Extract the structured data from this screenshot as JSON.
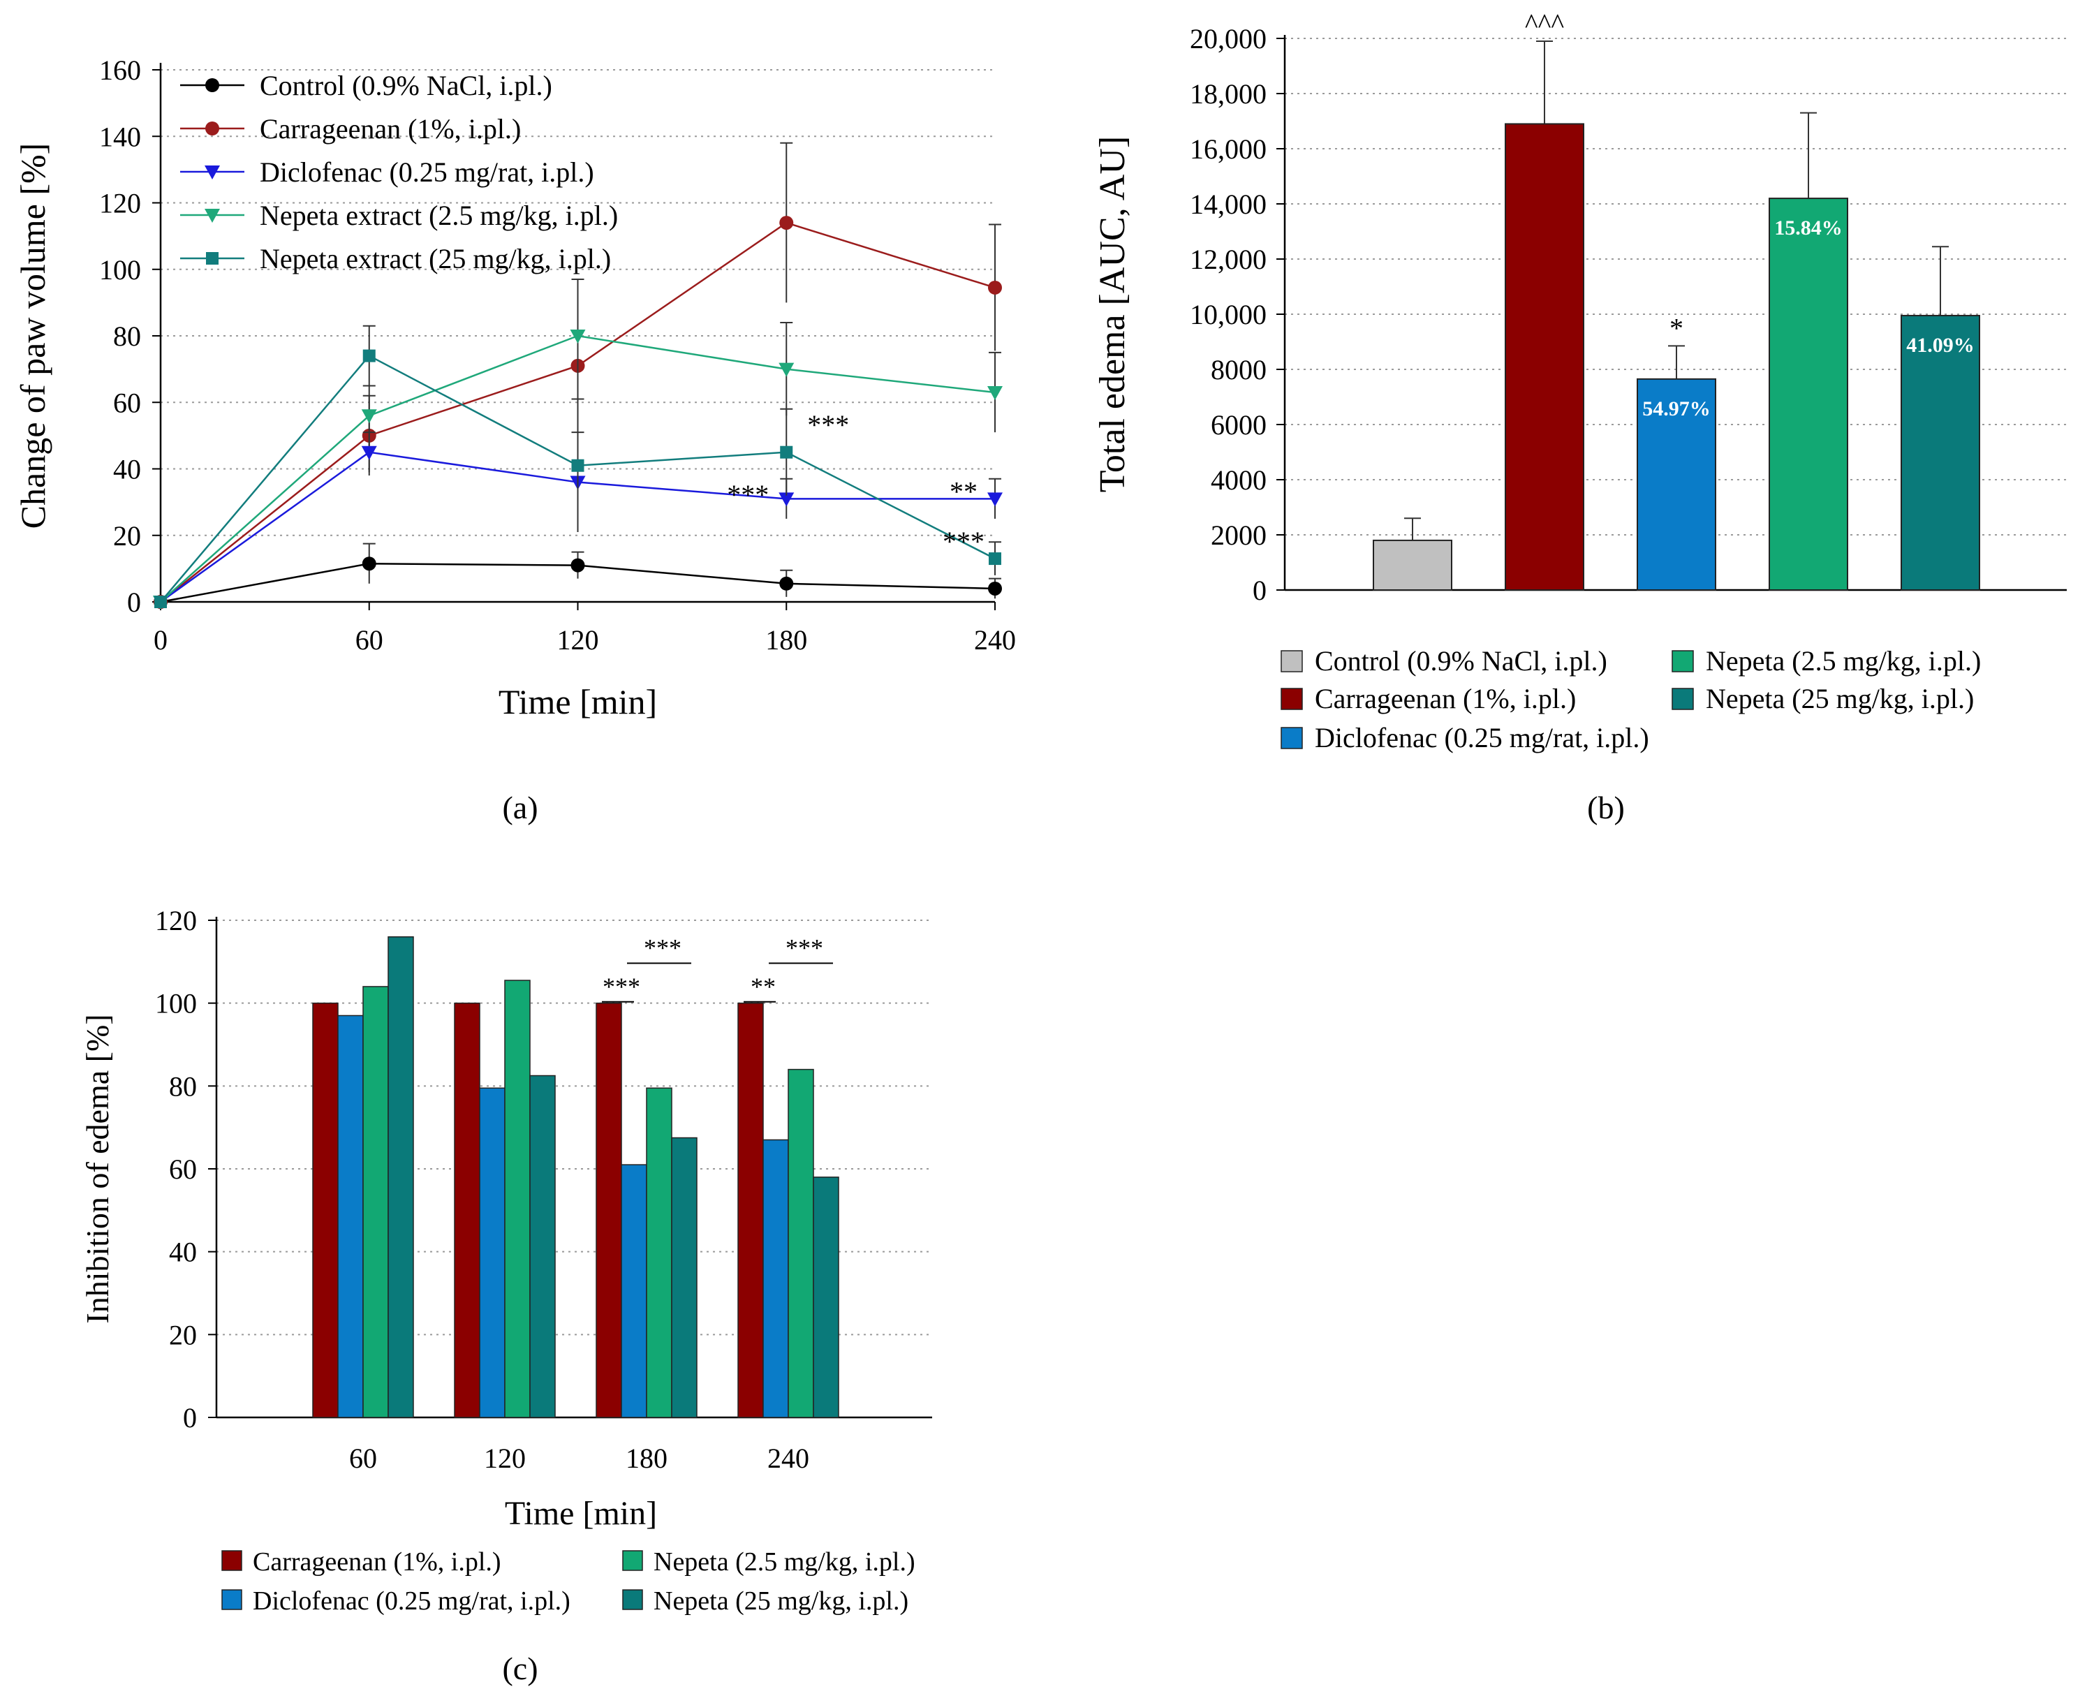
{
  "panel_labels": [
    "(a)",
    "(b)",
    "(c)"
  ],
  "chart_data": [
    {
      "id": "a",
      "type": "line",
      "xlabel": "Time [min]",
      "ylabel": "Change of paw volume [%]",
      "x": [
        0,
        60,
        120,
        180,
        240
      ],
      "xticks": [
        "0",
        "60",
        "120",
        "180",
        "240"
      ],
      "yticks": [
        "0",
        "20",
        "40",
        "60",
        "80",
        "100",
        "120",
        "140",
        "160"
      ],
      "ylim": [
        0,
        160
      ],
      "grid": "horizontal dotted",
      "legend_position": "top-left",
      "series": [
        {
          "name": "Control (0.9% NaCl, i.pl.)",
          "color": "#000000",
          "marker": "circle",
          "values": [
            0,
            11.5,
            11,
            5.5,
            4
          ],
          "errors": [
            0,
            6,
            4,
            4,
            3
          ]
        },
        {
          "name": "Carrageenan (1%, i.pl.)",
          "color": "#9b1c1c",
          "marker": "circle",
          "values": [
            0,
            50,
            71,
            114,
            94.5
          ],
          "errors": [
            0,
            12,
            26,
            24,
            19
          ]
        },
        {
          "name": "Diclofenac (0.25 mg/rat, i.pl.)",
          "color": "#1a1adc",
          "marker": "triangle-down",
          "values": [
            0,
            45,
            36,
            31,
            31
          ],
          "errors": [
            0,
            6,
            15,
            6,
            6
          ]
        },
        {
          "name": "Nepeta extract (2.5 mg/kg, i.pl.)",
          "color": "#1fa87a",
          "marker": "triangle-down",
          "values": [
            0,
            56,
            80,
            70,
            63
          ],
          "errors": [
            0,
            9,
            17,
            14,
            12
          ]
        },
        {
          "name": "Nepeta extract (25 mg/kg, i.pl.)",
          "color": "#127d7d",
          "marker": "square",
          "values": [
            0,
            74,
            41,
            45,
            13
          ],
          "errors": [
            0,
            9,
            20,
            13,
            5
          ]
        }
      ],
      "annotations": [
        {
          "text": "***",
          "x": 180,
          "y": 55
        },
        {
          "text": "***",
          "x": 180,
          "y": 34
        },
        {
          "text": "**",
          "x": 240,
          "y": 35
        },
        {
          "text": "***",
          "x": 240,
          "y": 20
        }
      ]
    },
    {
      "id": "b",
      "type": "bar",
      "ylabel": "Total edema [AUC, AU]",
      "categories": [
        "Control (0.9% NaCl, i.pl.)",
        "Carrageenan (1%, i.pl.)",
        "Diclofenac (0.25 mg/rat, i.pl.)",
        "Nepeta (2.5 mg/kg, i.pl.)",
        "Nepeta (25 mg/kg, i.pl.)"
      ],
      "values": [
        1800,
        16900,
        7650,
        14200,
        9950
      ],
      "errors": [
        800,
        3000,
        1200,
        3100,
        2500
      ],
      "colors": [
        "#c0c0c0",
        "#8b0000",
        "#0a7cc8",
        "#12a873",
        "#0a7a7a"
      ],
      "bar_labels": [
        "",
        "",
        "54.97%",
        "15.84%",
        "41.09%"
      ],
      "significance": [
        "",
        "^^^",
        "*",
        "",
        ""
      ],
      "yticks": [
        "0",
        "2000",
        "4000",
        "6000",
        "8000",
        "10,000",
        "12,000",
        "14,000",
        "16,000",
        "18,000",
        "20,000"
      ],
      "ylim": [
        0,
        20000
      ],
      "grid": "horizontal dotted",
      "legend_position": "bottom"
    },
    {
      "id": "c",
      "type": "bar",
      "xlabel": "Time [min]",
      "ylabel": "Inhibition of edema [%]",
      "categories": [
        "60",
        "120",
        "180",
        "240"
      ],
      "series": [
        {
          "name": "Carrageenan (1%, i.pl.)",
          "color": "#8b0000",
          "values": [
            100,
            100,
            100,
            100
          ]
        },
        {
          "name": "Diclofenac (0.25 mg/rat, i.pl.)",
          "color": "#0a7cc8",
          "values": [
            97,
            79.5,
            61,
            67
          ]
        },
        {
          "name": "Nepeta (2.5 mg/kg, i.pl.)",
          "color": "#12a873",
          "values": [
            104,
            105.5,
            79.5,
            84
          ]
        },
        {
          "name": "Nepeta (25 mg/kg, i.pl.)",
          "color": "#0a7a7a",
          "values": [
            116,
            82.5,
            67.5,
            58
          ]
        }
      ],
      "yticks": [
        "0",
        "20",
        "40",
        "60",
        "80",
        "100",
        "120"
      ],
      "ylim": [
        0,
        120
      ],
      "grid": "horizontal dotted",
      "legend_position": "bottom",
      "brackets": [
        {
          "text": "***",
          "category": "180",
          "from": 0,
          "to": 1,
          "y": 102
        },
        {
          "text": "***",
          "category": "180",
          "from": 1,
          "to": 3,
          "y": 112
        },
        {
          "text": "**",
          "category": "240",
          "from": 0,
          "to": 1,
          "y": 102
        },
        {
          "text": "***",
          "category": "240",
          "from": 1,
          "to": 3,
          "y": 112
        }
      ]
    }
  ]
}
